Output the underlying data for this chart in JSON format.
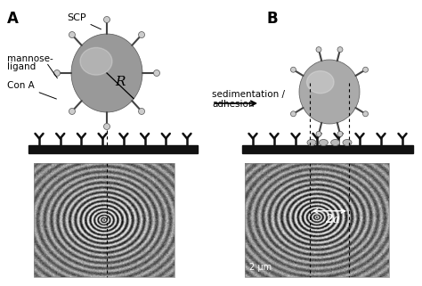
{
  "figsize": [
    4.74,
    3.21
  ],
  "dpi": 100,
  "bg_color": "#ffffff",
  "panel_A_label": "A",
  "panel_B_label": "B",
  "arrow_text_line1": "sedimentation /",
  "arrow_text_line2": "adhesion",
  "label_SCP": "SCP",
  "label_mannose": "mannose-",
  "label_ligand": "ligand",
  "label_ConA": "Con A",
  "label_R": "R",
  "label_2a": "2a",
  "label_scale": "2 μm",
  "sphere_color_A": "#999999",
  "sphere_color_B": "#aaaaaa",
  "bar_color": "#111111",
  "receptor_color": "#111111",
  "ligand_ball_color": "#cccccc",
  "ligand_stick_color": "#444444"
}
